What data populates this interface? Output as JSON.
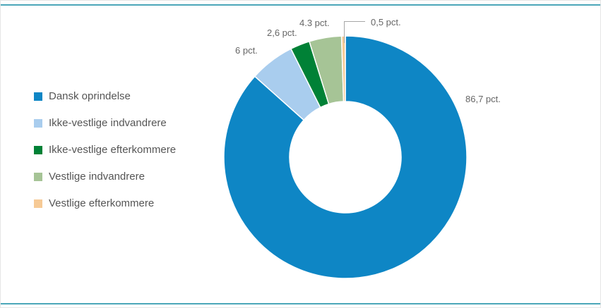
{
  "frame": {
    "rule_color": "#4BA7B9"
  },
  "chart_data": {
    "type": "pie",
    "subtype": "donut",
    "title": "",
    "legend_position": "left",
    "start_angle_deg": 0,
    "direction": "clockwise",
    "unit": "pct.",
    "categories": [
      "Dansk oprindelse",
      "Ikke-vestlige indvandrere",
      "Ikke-vestlige efterkommere",
      "Vestlige indvandrere",
      "Vestlige efterkommere"
    ],
    "values": [
      86.7,
      6,
      2.6,
      4.3,
      0.5
    ],
    "data_labels": [
      "86,7 pct.",
      "6 pct.",
      "2,6 pct.",
      "4.3 pct.",
      "0,5 pct."
    ],
    "colors": [
      "#0E86C5",
      "#A9CDEE",
      "#008136",
      "#A6C496",
      "#F6CA96"
    ]
  }
}
